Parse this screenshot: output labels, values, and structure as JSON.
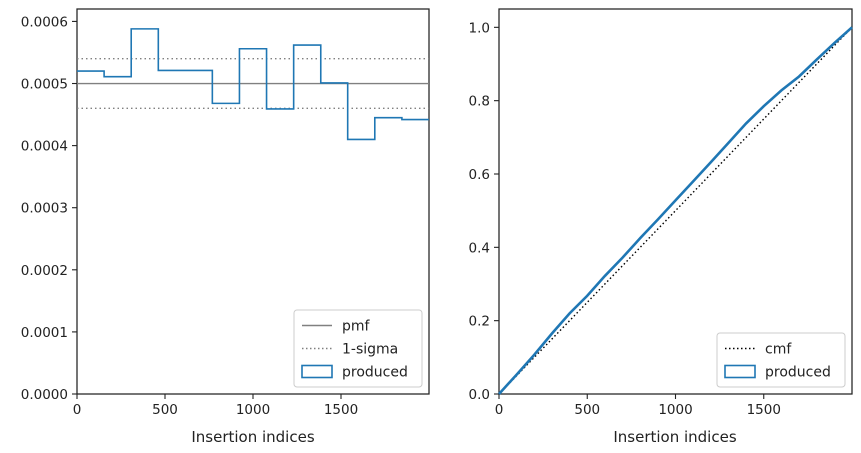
{
  "colors": {
    "produced": "#1f77b4",
    "reference": "#808080",
    "cmf": "#000000",
    "axis": "#222222"
  },
  "chart_data": [
    {
      "type": "line",
      "subtype": "step-histogram",
      "title": "",
      "xlabel": "Insertion indices",
      "ylabel": "",
      "xlim": [
        0,
        2000
      ],
      "ylim": [
        0,
        0.00062
      ],
      "xticks": [
        0,
        500,
        1000,
        1500
      ],
      "xtick_labels": [
        "0",
        "500",
        "1000",
        "1500"
      ],
      "yticks": [
        0,
        0.0001,
        0.0002,
        0.0003,
        0.0004,
        0.0005,
        0.0006
      ],
      "ytick_labels": [
        "0.0000",
        "0.0001",
        "0.0002",
        "0.0003",
        "0.0004",
        "0.0005",
        "0.0006"
      ],
      "legend_position": "bottom-right",
      "grid": false,
      "series": [
        {
          "name": "pmf",
          "kind": "hline",
          "style": "solid",
          "y": 0.0005
        },
        {
          "name": "1-sigma",
          "kind": "hlines",
          "style": "dotted",
          "y": [
            0.00046,
            0.00054
          ]
        },
        {
          "name": "produced",
          "kind": "step",
          "bin_edges": [
            0,
            154,
            308,
            462,
            615,
            769,
            923,
            1077,
            1231,
            1385,
            1538,
            1692,
            1846,
            2000
          ],
          "values": [
            0.00052,
            0.000511,
            0.000588,
            0.000521,
            0.000521,
            0.000468,
            0.000556,
            0.000459,
            0.000562,
            0.000501,
            0.00041,
            0.000445,
            0.000442
          ]
        }
      ]
    },
    {
      "type": "line",
      "subtype": "cumulative",
      "title": "",
      "xlabel": "Insertion indices",
      "ylabel": "",
      "xlim": [
        0,
        2000
      ],
      "ylim": [
        0,
        1.05
      ],
      "xticks": [
        0,
        500,
        1000,
        1500
      ],
      "xtick_labels": [
        "0",
        "500",
        "1000",
        "1500"
      ],
      "yticks": [
        0,
        0.2,
        0.4,
        0.6,
        0.8,
        1.0
      ],
      "ytick_labels": [
        "0.0",
        "0.2",
        "0.4",
        "0.6",
        "0.8",
        "1.0"
      ],
      "legend_position": "bottom-right",
      "grid": false,
      "series": [
        {
          "name": "cmf",
          "kind": "line",
          "style": "dotted",
          "x": [
            0,
            2000
          ],
          "y": [
            0,
            1.0
          ]
        },
        {
          "name": "produced",
          "kind": "line",
          "x": [
            0,
            100,
            200,
            300,
            400,
            500,
            600,
            700,
            800,
            900,
            1000,
            1100,
            1200,
            1300,
            1400,
            1500,
            1600,
            1700,
            1800,
            1900,
            2000
          ],
          "y": [
            0,
            0.053,
            0.107,
            0.165,
            0.22,
            0.268,
            0.322,
            0.372,
            0.425,
            0.476,
            0.528,
            0.58,
            0.632,
            0.685,
            0.738,
            0.785,
            0.828,
            0.866,
            0.912,
            0.957,
            1.0
          ]
        }
      ]
    }
  ]
}
